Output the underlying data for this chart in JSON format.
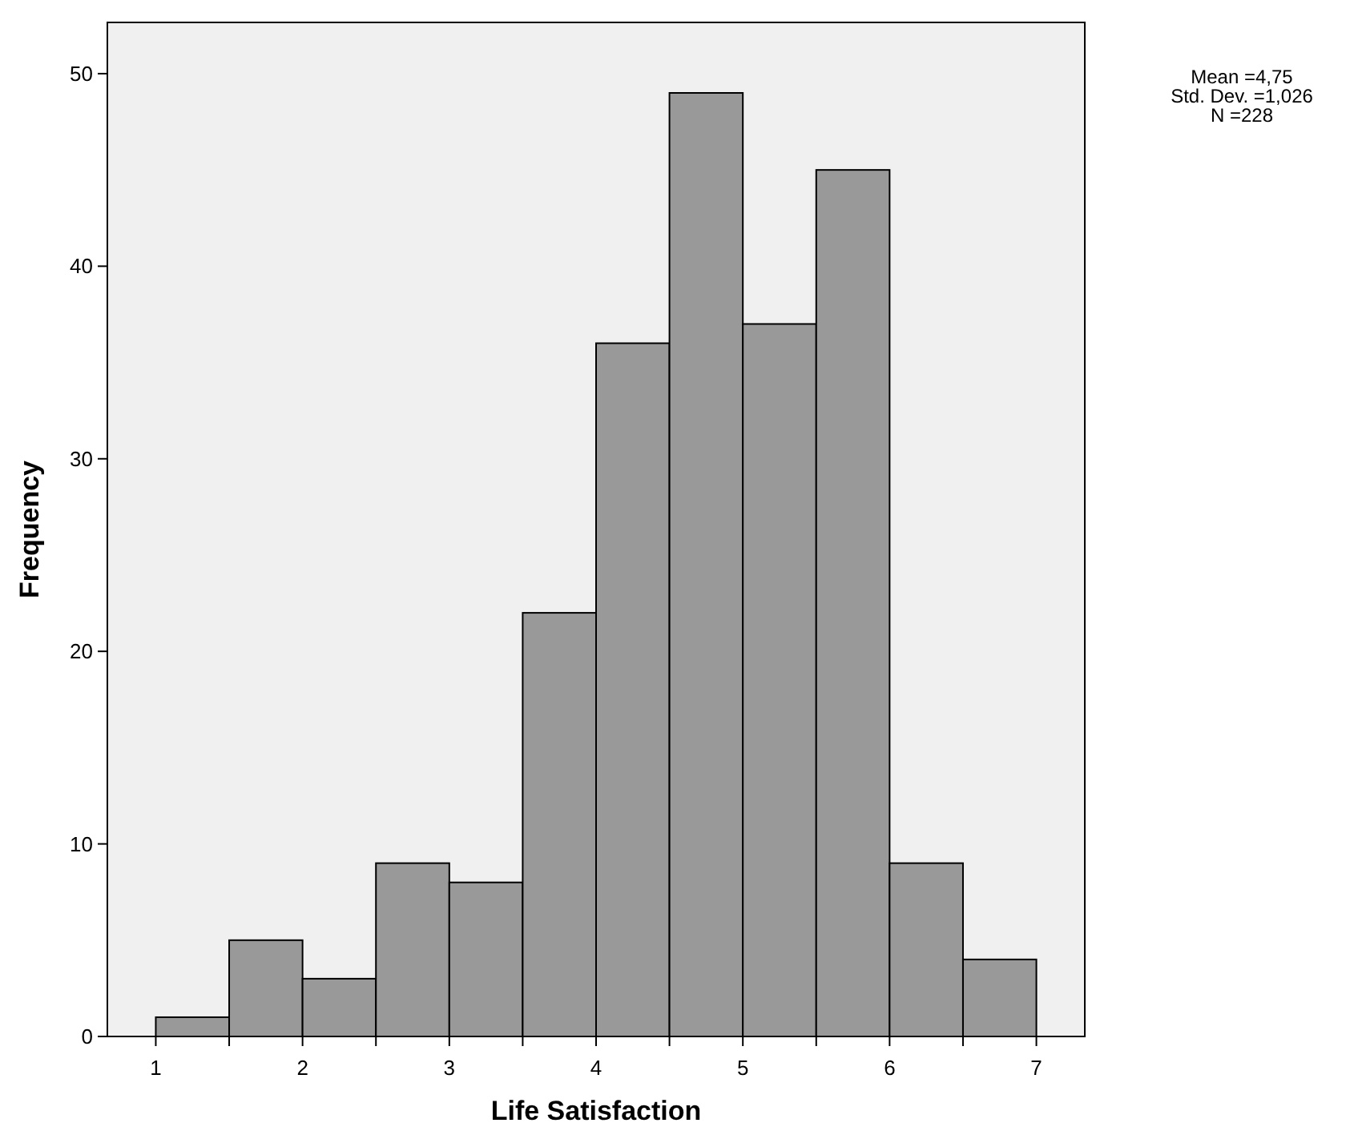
{
  "chart_data": {
    "type": "histogram",
    "xlabel": "Life Satisfaction",
    "ylabel": "Frequency",
    "bins": [
      1,
      1.5,
      2,
      2.5,
      3,
      3.5,
      4,
      4.5,
      5,
      5.5,
      6,
      6.5,
      7
    ],
    "values": [
      1,
      5,
      3,
      9,
      8,
      22,
      36,
      49,
      37,
      45,
      9,
      4
    ],
    "color": "#999999",
    "xlim": [
      0.67,
      7.33
    ],
    "ylim": [
      0,
      52.66
    ],
    "xticks": [
      1,
      {
        "value": 1.5,
        "label": null
      },
      2,
      {
        "value": 2.5,
        "label": null
      },
      3,
      {
        "value": 3.5,
        "label": null
      },
      4,
      {
        "value": 4.5,
        "label": null
      },
      5,
      {
        "value": 5.5,
        "label": null
      },
      6,
      {
        "value": 6.5,
        "label": null
      },
      7
    ],
    "yticks": [
      0,
      10,
      20,
      30,
      40,
      50
    ],
    "grid": false,
    "annotations": [
      "Mean =4,75",
      "Std. Dev. =1,026",
      "N =228"
    ]
  }
}
